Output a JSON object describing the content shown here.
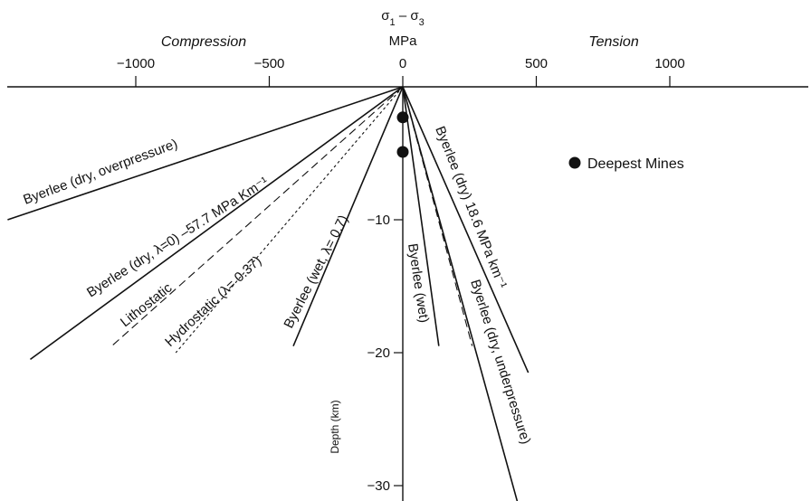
{
  "chart_data": {
    "type": "line",
    "title": "",
    "xlabel_top": "σ1 – σ3",
    "xlabel_units": "MPa",
    "ylabel": "Depth (km)",
    "region_labels": {
      "left": "Compression",
      "right": "Tension"
    },
    "xlim": [
      -1480,
      1520
    ],
    "ylim": [
      -32.5,
      0
    ],
    "x_ticks": [
      -1000,
      -500,
      0,
      500,
      1000
    ],
    "x_tick_labels": [
      "−1000",
      "−500",
      "0",
      "500",
      "1000"
    ],
    "y_ticks": [
      -10,
      -20,
      -30
    ],
    "y_tick_labels": [
      "−10",
      "−20",
      "−30"
    ],
    "grid": false,
    "legend": {
      "position": "right",
      "entries": [
        {
          "label": "Deepest Mines",
          "marker": "circle"
        }
      ]
    },
    "series": [
      {
        "name": "Byerlee (dry, overpressure)",
        "style": "solid",
        "x": [
          0,
          -1480
        ],
        "y": [
          0,
          -10
        ]
      },
      {
        "name": "Byerlee (dry, λ=0) –57.7 MPa Km⁻¹",
        "style": "solid",
        "x": [
          0,
          -1395
        ],
        "y": [
          0,
          -20.5
        ]
      },
      {
        "name": "Lithostatic",
        "style": "dashed",
        "x": [
          0,
          -1090
        ],
        "y": [
          0,
          -19.5
        ]
      },
      {
        "name": "Hydrostatic (λ= 0.37)",
        "style": "dotted",
        "x": [
          0,
          -850
        ],
        "y": [
          0,
          -20
        ]
      },
      {
        "name": "Byerlee (wet, λ= 0.7)",
        "style": "solid",
        "x": [
          0,
          -410
        ],
        "y": [
          0,
          -19.5
        ]
      },
      {
        "name": "Byerlee (wet)",
        "style": "solid",
        "x": [
          0,
          135
        ],
        "y": [
          0,
          -19.5
        ]
      },
      {
        "name": "",
        "style": "dashed",
        "x": [
          0,
          260
        ],
        "y": [
          0,
          -19.5
        ]
      },
      {
        "name": "Byerlee (dry) 18.6 MPa km⁻¹",
        "style": "solid",
        "x": [
          0,
          470
        ],
        "y": [
          0,
          -21.5
        ]
      },
      {
        "name": "Byerlee (dry, underpressure)",
        "style": "solid",
        "x": [
          0,
          440
        ],
        "y": [
          0,
          -32
        ]
      }
    ],
    "points": [
      {
        "name": "Deepest Mines",
        "x": [
          0,
          0
        ],
        "y": [
          -2.3,
          -4.9
        ]
      }
    ]
  }
}
